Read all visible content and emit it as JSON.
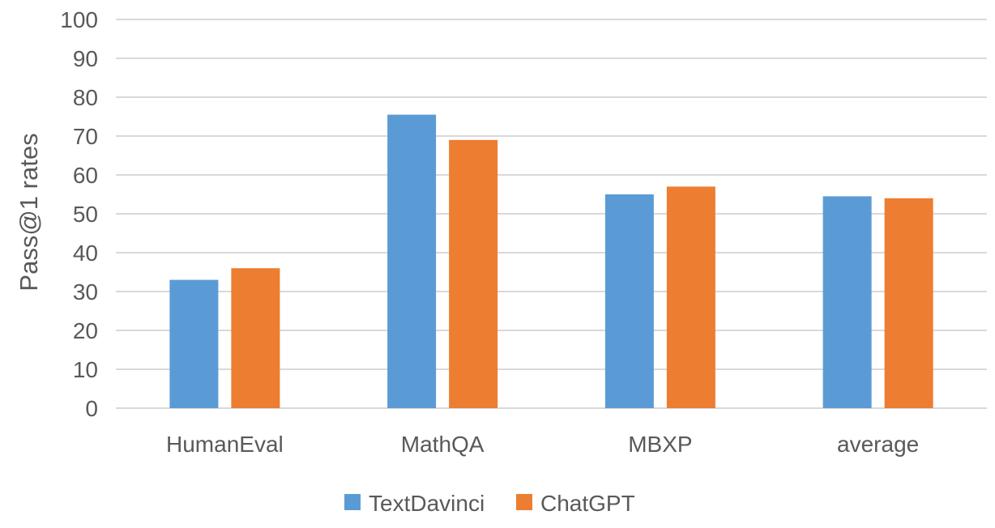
{
  "chart_data": {
    "type": "bar",
    "title": "",
    "xlabel": "",
    "ylabel": "Pass@1 rates",
    "categories": [
      "HumanEval",
      "MathQA",
      "MBXP",
      "average"
    ],
    "series": [
      {
        "name": "TextDavinci",
        "values": [
          33,
          75.5,
          55,
          54.5
        ],
        "color": "#5b9bd5"
      },
      {
        "name": "ChatGPT",
        "values": [
          36,
          69,
          57,
          54
        ],
        "color": "#ed7d31"
      }
    ],
    "ylim": [
      0,
      100
    ],
    "yticks": [
      0,
      10,
      20,
      30,
      40,
      50,
      60,
      70,
      80,
      90,
      100
    ],
    "grid": true,
    "legend_position": "bottom"
  }
}
